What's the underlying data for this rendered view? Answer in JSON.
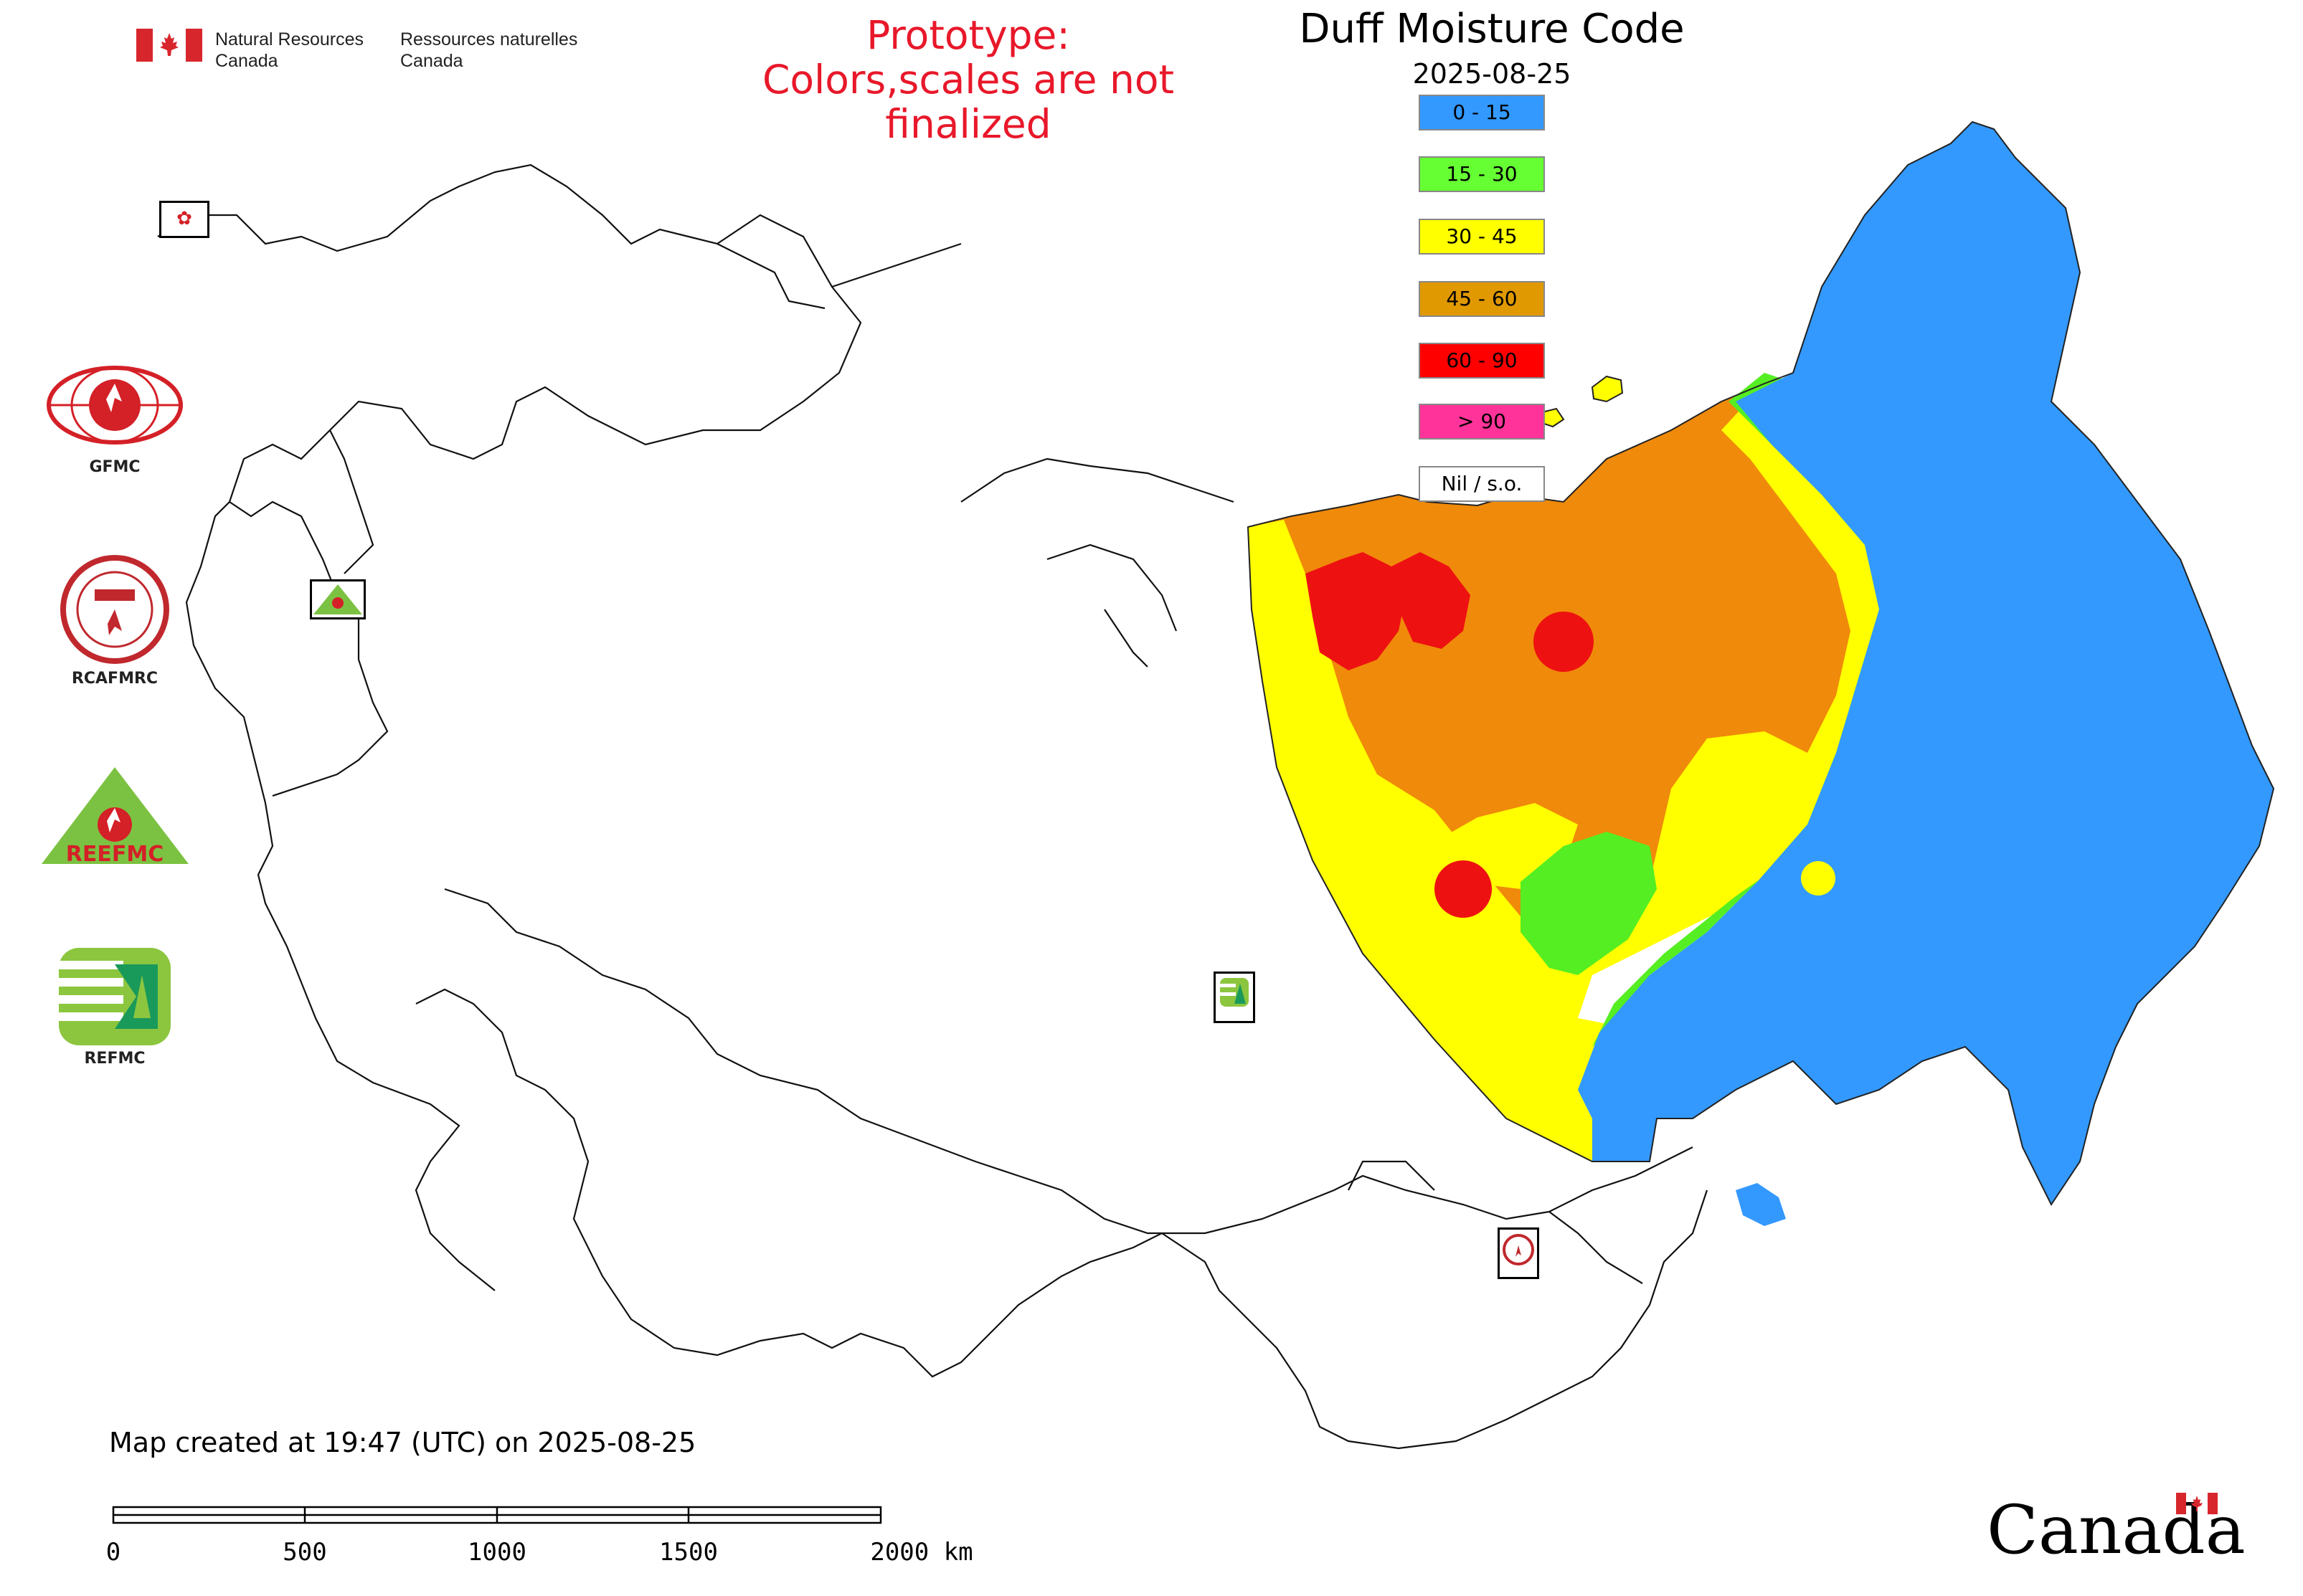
{
  "agency": {
    "name_en_line1": "Natural Resources",
    "name_en_line2": "Canada",
    "name_fr_line1": "Ressources naturelles",
    "name_fr_line2": "Canada",
    "flag_colors": {
      "red": "#d8262d",
      "white": "#ffffff"
    }
  },
  "notice": {
    "line1": "Prototype:",
    "line2": "Colors,scales are not finalized",
    "color": "#e8182a"
  },
  "map": {
    "title": "Duff Moisture Code",
    "date": "2025-08-25",
    "legend": [
      {
        "label": "0 - 15",
        "color": "#3399ff"
      },
      {
        "label": "15 - 30",
        "color": "#66ff33"
      },
      {
        "label": "30 - 45",
        "color": "#ffff00"
      },
      {
        "label": "45 - 60",
        "color": "#e09900"
      },
      {
        "label": "60 - 90",
        "color": "#ff0000"
      },
      {
        "label": "> 90",
        "color": "#ff3399"
      },
      {
        "label": "Nil / s.o.",
        "color": "#ffffff"
      }
    ]
  },
  "organizations": [
    {
      "label": "GFMC",
      "icon": "gfmc-logo-icon"
    },
    {
      "label": "RCAFMRC",
      "icon": "rcafmrc-logo-icon"
    },
    {
      "label": "",
      "icon": "reefmc-logo-icon",
      "logo_text": "REEFMC"
    },
    {
      "label": "REFMC",
      "icon": "refmc-logo-icon"
    }
  ],
  "footer": {
    "created": "Map created at 19:47 (UTC) on 2025-08-25"
  },
  "scale_bar": {
    "labels": [
      "0",
      "500",
      "1000",
      "1500",
      "2000 km"
    ]
  },
  "wordmark": "Canada"
}
